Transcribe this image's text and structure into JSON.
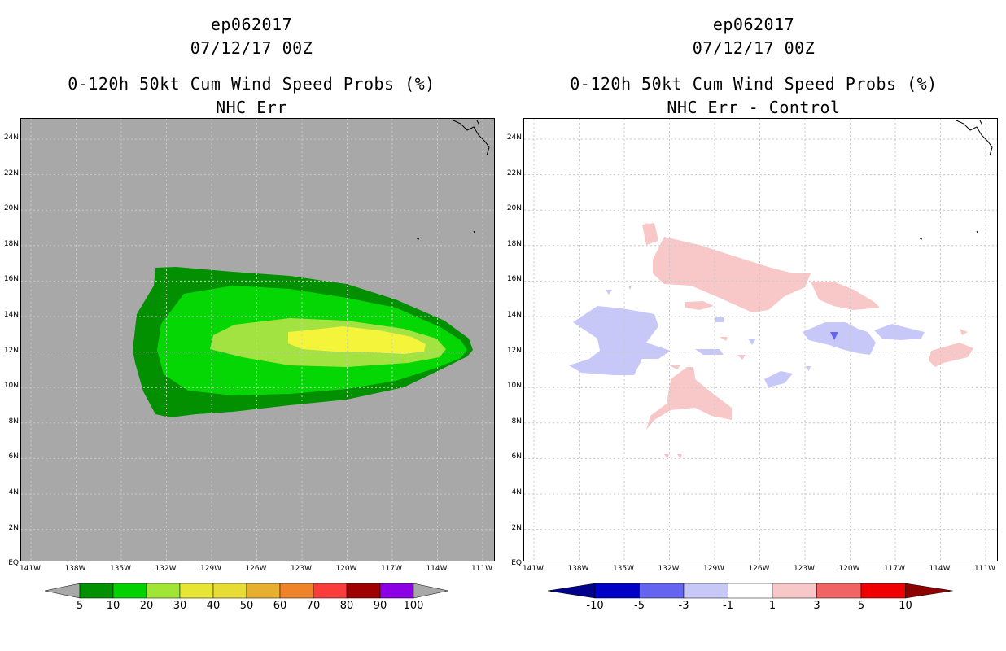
{
  "left": {
    "storm": "ep062017",
    "datetime": "07/12/17 00Z",
    "product": "0-120h 50kt Cum Wind Speed Probs (%)",
    "subtitle": "NHC Err",
    "background_color": "#a8a8a8",
    "contour_levels": [
      {
        "level": "5",
        "color": "#029001"
      },
      {
        "level": "10",
        "color": "#04d703"
      },
      {
        "level": "20",
        "color": "#a2e342"
      },
      {
        "level": "30",
        "color": "#f4f43a"
      }
    ],
    "colorbar": {
      "labels": [
        "5",
        "10",
        "20",
        "30",
        "40",
        "50",
        "60",
        "70",
        "80",
        "90",
        "100"
      ],
      "colors": [
        "#009000",
        "#00d200",
        "#a0e632",
        "#e6e632",
        "#e6dc32",
        "#e6af2d",
        "#f08228",
        "#fa3c3c",
        "#a00000",
        "#8c00e6"
      ],
      "end_color": "#a8a8a8"
    }
  },
  "right": {
    "storm": "ep062017",
    "datetime": "07/12/17 00Z",
    "product": "0-120h 50kt Cum Wind Speed Probs (%)",
    "subtitle": "NHC Err - Control",
    "background_color": "#ffffff",
    "colorbar": {
      "labels": [
        "-10",
        "-5",
        "-3",
        "-1",
        "1",
        "3",
        "5",
        "10"
      ],
      "colors": [
        "#0000c8",
        "#6464f0",
        "#c8c8f8",
        "#ffffff",
        "#f8c8c8",
        "#f06464",
        "#f00000"
      ],
      "left_end_color": "#00008c",
      "right_end_color": "#8c0000"
    }
  },
  "axes": {
    "lat_labels": [
      "24N",
      "22N",
      "20N",
      "18N",
      "16N",
      "14N",
      "12N",
      "10N",
      "8N",
      "6N",
      "4N",
      "2N",
      "EQ"
    ],
    "lon_labels": [
      "141W",
      "138W",
      "135W",
      "132W",
      "129W",
      "126W",
      "123W",
      "120W",
      "117W",
      "114W",
      "111W"
    ]
  }
}
